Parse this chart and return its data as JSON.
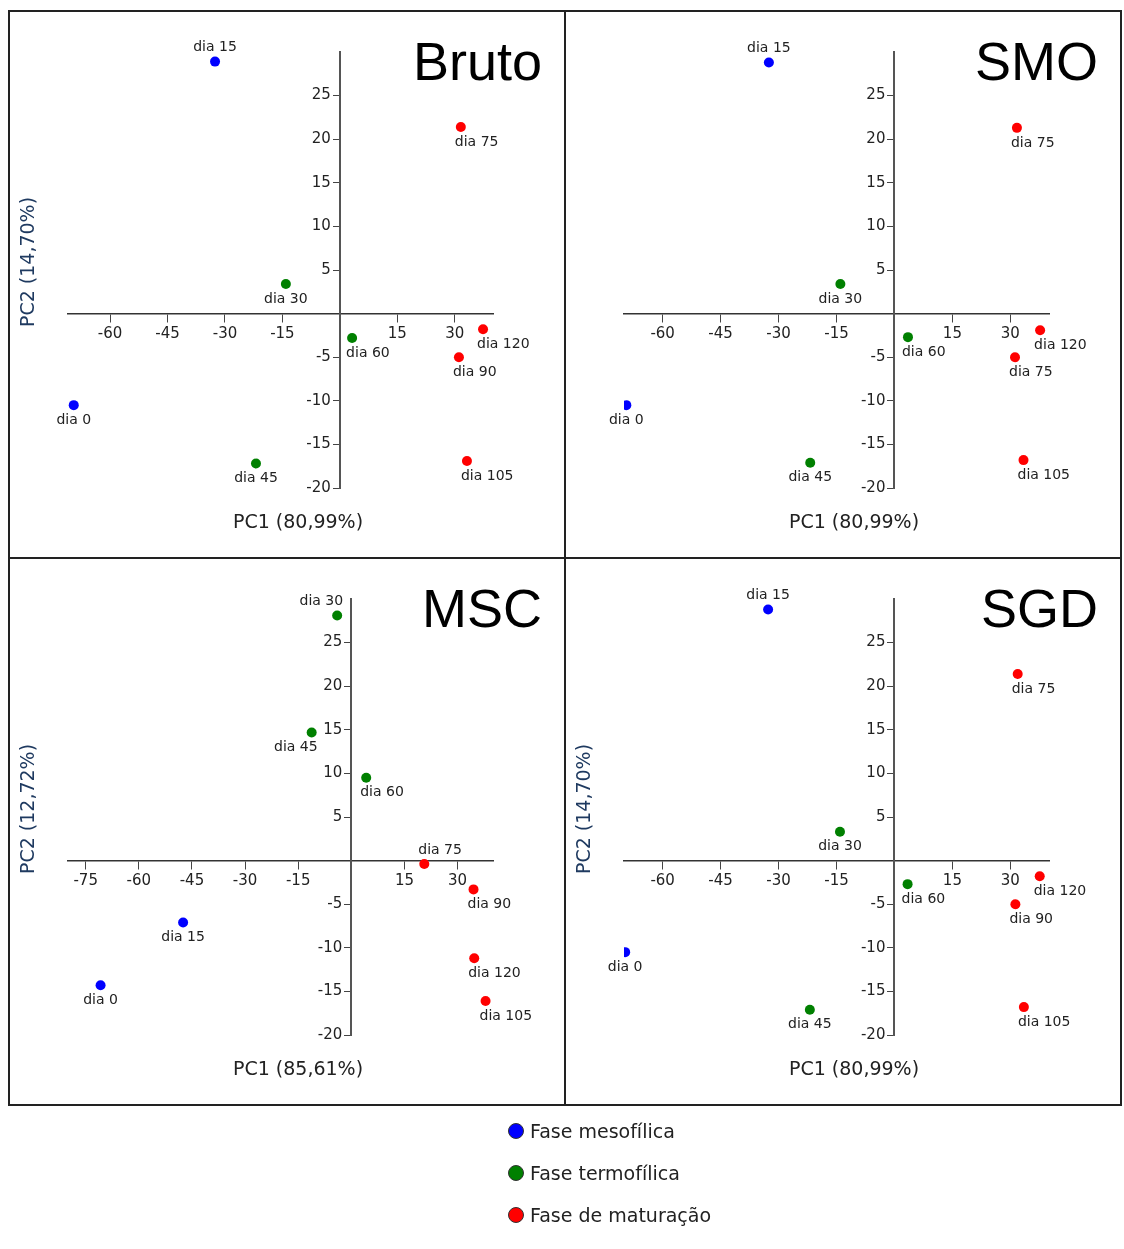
{
  "chart_data": [
    {
      "type": "scatter",
      "title": "Bruto",
      "xlabel": "PC1 (80,99%)",
      "ylabel": "PC2 (14,70%)",
      "xlim": [
        -71,
        40
      ],
      "ylim": [
        -20,
        30
      ],
      "xticks": [
        -60,
        -45,
        -30,
        -15,
        15,
        30
      ],
      "yticks": [
        -20,
        -15,
        -10,
        -5,
        5,
        10,
        15,
        20,
        25
      ],
      "legend": "bottom",
      "marker": "circle",
      "series": [
        {
          "name": "Fase mesofílica",
          "color": "#0000ff",
          "x": [
            -69.5,
            -32.6
          ],
          "values": [
            -10.5,
            28.9
          ],
          "value_labels": [
            "dia 0",
            "dia 15"
          ]
        },
        {
          "name": "Fase termofílica",
          "color": "#008000",
          "x": [
            -14.1,
            -21.9,
            3.2
          ],
          "values": [
            3.4,
            -17.2,
            -2.8
          ],
          "value_labels": [
            "dia 30",
            "dia 45",
            "dia 60"
          ]
        },
        {
          "name": "Fase de maturação",
          "color": "#ff0000",
          "x": [
            31.6,
            31.1,
            33.2,
            37.4
          ],
          "values": [
            21.4,
            -5.0,
            -16.9,
            -1.8
          ],
          "value_labels": [
            "dia 75",
            "dia 90",
            "dia 105",
            "dia 120"
          ]
        }
      ]
    },
    {
      "type": "scatter",
      "title": "SMO",
      "xlabel": "PC1 (80,99%)",
      "xlim": [
        -70,
        40
      ],
      "ylim": [
        -20,
        30
      ],
      "xticks": [
        -60,
        -45,
        -30,
        -15,
        15,
        30
      ],
      "yticks": [
        -20,
        -15,
        -10,
        -5,
        5,
        10,
        15,
        20,
        25
      ],
      "legend": "bottom",
      "marker": "circle",
      "series": [
        {
          "name": "Fase mesofílica",
          "color": "#0000ff",
          "x": [
            -69.4,
            -32.5
          ],
          "values": [
            -10.5,
            28.8
          ],
          "value_labels": [
            "dia 0",
            "dia 15"
          ]
        },
        {
          "name": "Fase termofílica",
          "color": "#008000",
          "x": [
            -14.0,
            -21.8,
            3.5
          ],
          "values": [
            3.4,
            -17.1,
            -2.7
          ],
          "value_labels": [
            "dia 30",
            "dia 45",
            "dia 60"
          ]
        },
        {
          "name": "Fase de maturação",
          "color": "#ff0000",
          "x": [
            31.7,
            31.2,
            33.4,
            37.7
          ],
          "values": [
            21.3,
            -5.0,
            -16.8,
            -1.9
          ],
          "value_labels": [
            "dia 75",
            "dia 75",
            "dia 105",
            "dia 120"
          ]
        }
      ]
    },
    {
      "type": "scatter",
      "title": "MSC",
      "xlabel": "PC1 (85,61%)",
      "ylabel": "PC2 (12,72%)",
      "xlim": [
        -80,
        40
      ],
      "ylim": [
        -20,
        30
      ],
      "xticks": [
        -75,
        -60,
        -45,
        -30,
        -15,
        15,
        30
      ],
      "yticks": [
        -20,
        -15,
        -10,
        -5,
        5,
        10,
        15,
        20,
        25
      ],
      "legend": "bottom",
      "marker": "circle",
      "series": [
        {
          "name": "Fase mesofílica",
          "color": "#0000ff",
          "x": [
            -70.8,
            -47.5
          ],
          "values": [
            -14.3,
            -7.1
          ],
          "value_labels": [
            "dia 0",
            "dia 15"
          ]
        },
        {
          "name": "Fase termofílica",
          "color": "#008000",
          "x": [
            -4.0,
            -11.2,
            4.2
          ],
          "values": [
            28.1,
            14.7,
            9.5
          ],
          "value_labels": [
            "dia 30",
            "dia 45",
            "dia 60"
          ]
        },
        {
          "name": "Fase de maturação",
          "color": "#ff0000",
          "x": [
            20.6,
            34.5,
            37.9,
            34.7
          ],
          "values": [
            -0.4,
            -3.3,
            -16.1,
            -11.2
          ],
          "value_labels": [
            "dia 75",
            "dia 90",
            "dia 105",
            "dia 120"
          ]
        }
      ]
    },
    {
      "type": "scatter",
      "title": "SGD",
      "xlabel": "PC1 (80,99%)",
      "ylabel": "PC2 (14,70%)",
      "xlim": [
        -70,
        40
      ],
      "ylim": [
        -20,
        30
      ],
      "xticks": [
        -60,
        -45,
        -30,
        -15,
        15,
        30
      ],
      "yticks": [
        -20,
        -15,
        -10,
        -5,
        5,
        10,
        15,
        20,
        25
      ],
      "legend": "bottom",
      "marker": "circle",
      "series": [
        {
          "name": "Fase mesofílica",
          "color": "#0000ff",
          "x": [
            -69.7,
            -32.7
          ],
          "values": [
            -10.5,
            28.8
          ],
          "value_labels": [
            "dia 0",
            "dia 15"
          ]
        },
        {
          "name": "Fase termofílica",
          "color": "#008000",
          "x": [
            -14.1,
            -21.9,
            3.4
          ],
          "values": [
            3.3,
            -17.1,
            -2.7
          ],
          "value_labels": [
            "dia 30",
            "dia 45",
            "dia 60"
          ]
        },
        {
          "name": "Fase de maturação",
          "color": "#ff0000",
          "x": [
            31.9,
            31.3,
            33.5,
            37.6
          ],
          "values": [
            21.4,
            -5.0,
            -16.8,
            -1.8
          ],
          "value_labels": [
            "dia 75",
            "dia 90",
            "dia 105",
            "dia 120"
          ]
        }
      ]
    }
  ]
}
